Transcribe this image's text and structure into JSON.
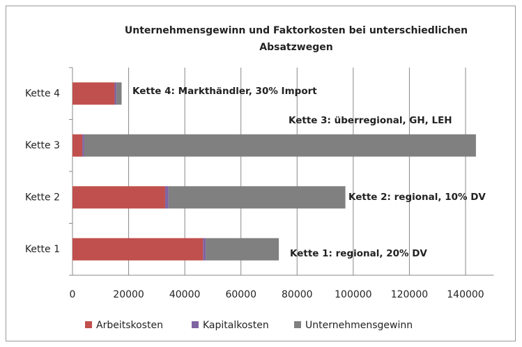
{
  "chart_data": {
    "type": "stacked_barh",
    "title": "Unternehmensgewinn und Faktorkosten  bei unterschiedlichen Absatzwegen",
    "categories": [
      "Kette 1",
      "Kette 2",
      "Kette 3",
      "Kette 4"
    ],
    "series": [
      {
        "name": "Arbeitskosten",
        "color": "#c0504d",
        "values": [
          46500,
          33000,
          3500,
          15000
        ]
      },
      {
        "name": "Kapitalkosten",
        "color": "#8064a2",
        "values": [
          1000,
          1200,
          700,
          700
        ]
      },
      {
        "name": "Unternehmensgewinn",
        "color": "#808080",
        "values": [
          26000,
          63000,
          139500,
          1800
        ]
      }
    ],
    "annotations": [
      "Kette 1: regional, 20% DV",
      "Kette 2: regional, 10% DV",
      "Kette 3: überregional, GH, LEH",
      "Kette 4: Markthändler, 30% Import"
    ],
    "xlim": [
      0,
      150000
    ],
    "xticks": [
      0,
      20000,
      40000,
      60000,
      80000,
      100000,
      120000,
      140000
    ],
    "grid": true,
    "legend": "bottom"
  }
}
